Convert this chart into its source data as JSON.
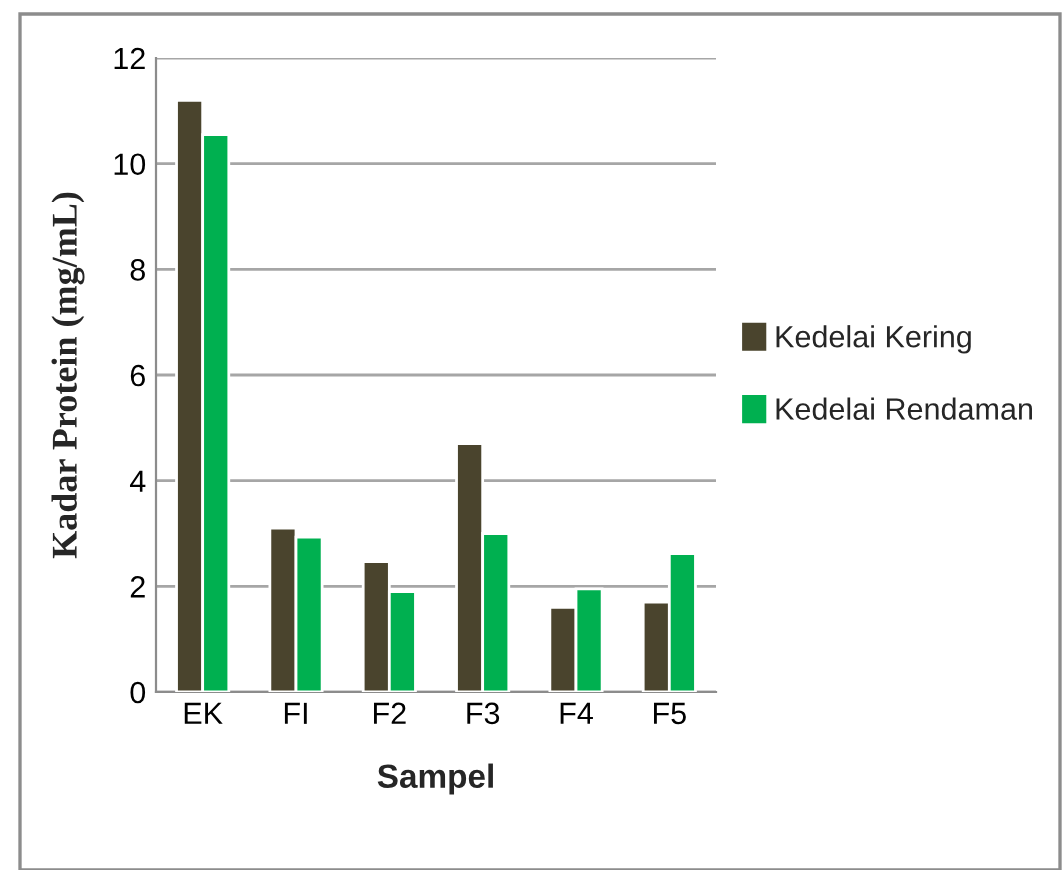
{
  "chart_data": {
    "type": "bar",
    "xlabel": "Sampel",
    "ylabel": "Kadar Protein (mg/mL)",
    "categories": [
      "EK",
      "FI",
      "F2",
      "F3",
      "F4",
      "F5"
    ],
    "series": [
      {
        "name": "Kedelai Kering",
        "color": "#4a442d",
        "values": [
          11.2,
          3.1,
          2.47,
          4.7,
          1.6,
          1.7
        ]
      },
      {
        "name": "Kedelai Rendaman",
        "color": "#00b050",
        "values": [
          10.55,
          2.93,
          1.9,
          3.0,
          1.95,
          2.62
        ]
      }
    ],
    "ylim": [
      0,
      12
    ],
    "yticks": [
      0,
      2,
      4,
      6,
      8,
      10,
      12
    ],
    "grid": "y",
    "legend": "right"
  }
}
